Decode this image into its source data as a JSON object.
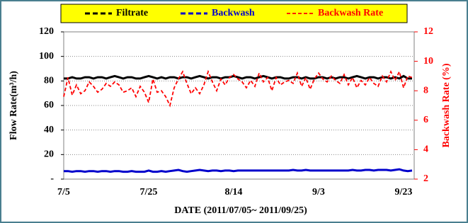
{
  "chart_data": {
    "type": "line",
    "xlabel": "DATE (2011/07/05~ 2011/09/25)",
    "ylabel": "Flow Rate(m³/h)",
    "y2label": "Backwash Rate (%)",
    "categories": [
      "7/5",
      null,
      null,
      null,
      null,
      null,
      null,
      null,
      null,
      null,
      null,
      null,
      null,
      null,
      null,
      null,
      null,
      null,
      null,
      null,
      "7/25",
      null,
      null,
      null,
      null,
      null,
      null,
      null,
      null,
      null,
      null,
      null,
      null,
      null,
      null,
      null,
      null,
      null,
      null,
      null,
      "8/14",
      null,
      null,
      null,
      null,
      null,
      null,
      null,
      null,
      null,
      null,
      null,
      null,
      null,
      null,
      null,
      null,
      null,
      null,
      null,
      "9/3",
      null,
      null,
      null,
      null,
      null,
      null,
      null,
      null,
      null,
      null,
      null,
      null,
      null,
      null,
      null,
      null,
      null,
      null,
      null,
      "9/23",
      null,
      null
    ],
    "series": [
      {
        "name": "Filtrate",
        "color": "#000000",
        "values": [
          82,
          82,
          83,
          82,
          82,
          83,
          83,
          82,
          83,
          83,
          82,
          83,
          84,
          83,
          82,
          83,
          83,
          82,
          82,
          83,
          84,
          83,
          82,
          83,
          82,
          83,
          83,
          82,
          83,
          83,
          82,
          83,
          84,
          83,
          82,
          83,
          83,
          82,
          83,
          83,
          84,
          83,
          82,
          83,
          83,
          82,
          83,
          84,
          83,
          82,
          83,
          83,
          82,
          82,
          83,
          83,
          82,
          83,
          82,
          82,
          83,
          83,
          82,
          83,
          82,
          83,
          83,
          82,
          83,
          84,
          83,
          82,
          83,
          83,
          82,
          83,
          83,
          82,
          83,
          82,
          84,
          82,
          82
        ]
      },
      {
        "name": "Backwash",
        "color": "#0000cc",
        "values": [
          6.5,
          6.5,
          6,
          6.5,
          6.5,
          6,
          6.5,
          6.5,
          6,
          6.5,
          6.5,
          6,
          6.5,
          6.5,
          6,
          6,
          6.5,
          6,
          6,
          6,
          7,
          6,
          6,
          6.5,
          6,
          6.5,
          7,
          7.5,
          6.5,
          6,
          6.5,
          7,
          7.5,
          7,
          6.5,
          7,
          7,
          6.5,
          7,
          7,
          6.5,
          7,
          7,
          7,
          7,
          7,
          7,
          7,
          7,
          7,
          7,
          7,
          7,
          7,
          7.5,
          7,
          7,
          7.5,
          7,
          7,
          7,
          7,
          7,
          7,
          7,
          7,
          7,
          7,
          7.5,
          7,
          7,
          7.5,
          7.5,
          7,
          7.5,
          7.5,
          7.5,
          7,
          7.5,
          8,
          7,
          6.5,
          7
        ]
      },
      {
        "name": "Backwash Rate",
        "color": "#ff0000",
        "axis": "y2",
        "values": [
          7.6,
          8.9,
          7.7,
          8.4,
          7.8,
          8.0,
          8.6,
          8.3,
          7.9,
          8.1,
          8.5,
          8.3,
          8.6,
          8.4,
          7.9,
          8.0,
          8.2,
          7.6,
          8.3,
          7.9,
          7.2,
          8.8,
          7.9,
          8.0,
          7.6,
          7.0,
          8.2,
          8.8,
          9.3,
          8.5,
          7.8,
          8.2,
          7.8,
          8.4,
          9.3,
          8.6,
          8.0,
          8.8,
          8.4,
          8.9,
          9.1,
          8.8,
          8.6,
          8.2,
          8.7,
          8.3,
          9.2,
          8.6,
          8.9,
          8.0,
          8.9,
          8.4,
          8.6,
          8.7,
          8.5,
          9.2,
          8.3,
          8.9,
          8.1,
          8.8,
          9.2,
          8.8,
          8.6,
          9.0,
          8.7,
          8.5,
          9.1,
          8.4,
          8.9,
          8.2,
          8.7,
          8.4,
          8.9,
          8.5,
          8.3,
          9.0,
          8.6,
          9.3,
          8.7,
          9.3,
          8.2,
          9.0,
          8.9
        ]
      }
    ],
    "ylim": [
      0,
      120
    ],
    "yticks": [
      {
        "value": 0,
        "label": "-"
      },
      20,
      40,
      60,
      80,
      100,
      120
    ],
    "y2lim": [
      2,
      12
    ],
    "y2ticks": [
      2,
      4,
      6,
      8,
      10,
      12
    ],
    "grid": true
  }
}
